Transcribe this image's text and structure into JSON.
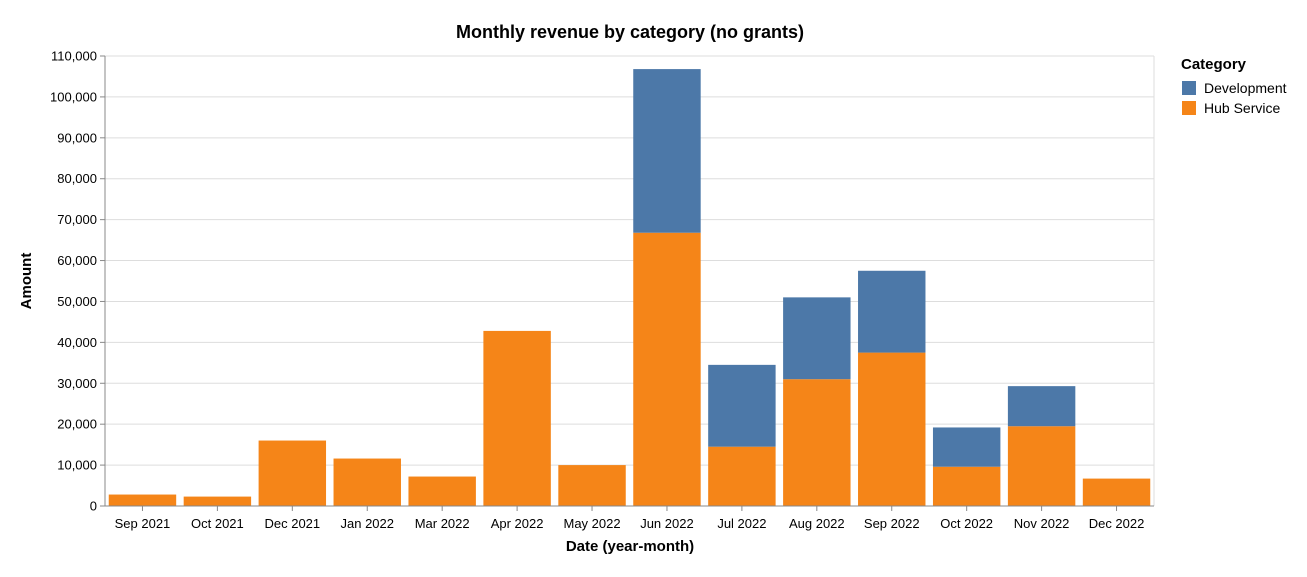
{
  "chart_data": {
    "type": "bar",
    "stacked": true,
    "title": "Monthly revenue by category (no grants)",
    "xlabel": "Date (year-month)",
    "ylabel": "Amount",
    "ylim": [
      0,
      110000
    ],
    "yticks": [
      0,
      10000,
      20000,
      30000,
      40000,
      50000,
      60000,
      70000,
      80000,
      90000,
      100000,
      110000
    ],
    "ytick_labels": [
      "0",
      "10,000",
      "20,000",
      "30,000",
      "40,000",
      "50,000",
      "60,000",
      "70,000",
      "80,000",
      "90,000",
      "100,000",
      "110,000"
    ],
    "grid": true,
    "legend": {
      "title": "Category",
      "placement": "right",
      "entries": [
        "Development",
        "Hub Service"
      ]
    },
    "categories": [
      "Sep 2021",
      "Oct 2021",
      "Dec 2021",
      "Jan 2022",
      "Mar 2022",
      "Apr 2022",
      "May 2022",
      "Jun 2022",
      "Jul 2022",
      "Aug 2022",
      "Sep 2022",
      "Oct 2022",
      "Nov 2022",
      "Dec 2022"
    ],
    "series": [
      {
        "name": "Hub Service",
        "color": "#f58518",
        "values": [
          2800,
          2300,
          16000,
          11600,
          7200,
          42800,
          10000,
          66800,
          14500,
          31000,
          37500,
          9600,
          19500,
          6700
        ]
      },
      {
        "name": "Development",
        "color": "#4c78a8",
        "values": [
          0,
          0,
          0,
          0,
          0,
          0,
          0,
          40000,
          20000,
          20000,
          20000,
          9600,
          9800,
          0
        ]
      }
    ]
  }
}
